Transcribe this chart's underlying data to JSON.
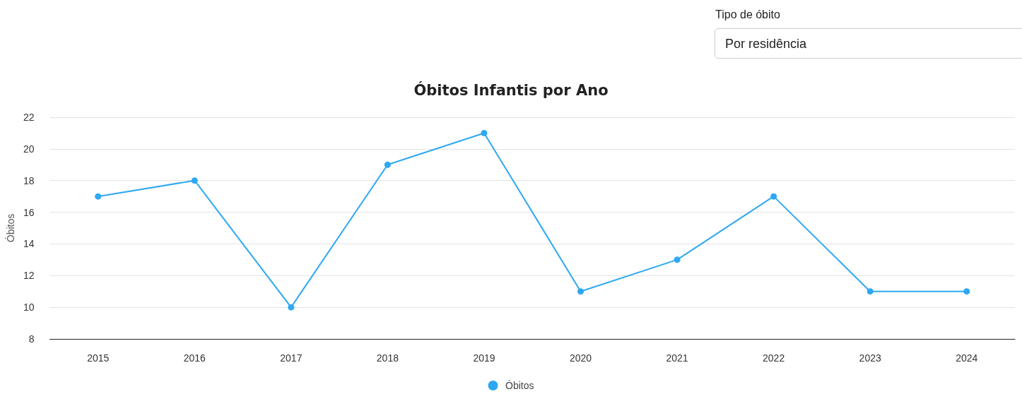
{
  "chart_data": {
    "type": "line",
    "title": "Óbitos Infantis por Ano",
    "ylabel": "Óbitos",
    "annotations": [
      "Tipo de óbito",
      "Por residência"
    ],
    "categories": [
      "2015",
      "2016",
      "2017",
      "2018",
      "2019",
      "2020",
      "2021",
      "2022",
      "2023",
      "2024"
    ],
    "series": [
      {
        "name": "Óbitos",
        "color": "#2ea8f2",
        "values": [
          17,
          18,
          10,
          19,
          21,
          11,
          13,
          17,
          11,
          11
        ]
      }
    ],
    "ylim": [
      8,
      22
    ],
    "yticks": [
      8,
      10,
      12,
      14,
      16,
      18,
      20,
      22
    ],
    "grid": "y",
    "legend": "bottom",
    "marker": "circle",
    "line_style": "solid"
  }
}
